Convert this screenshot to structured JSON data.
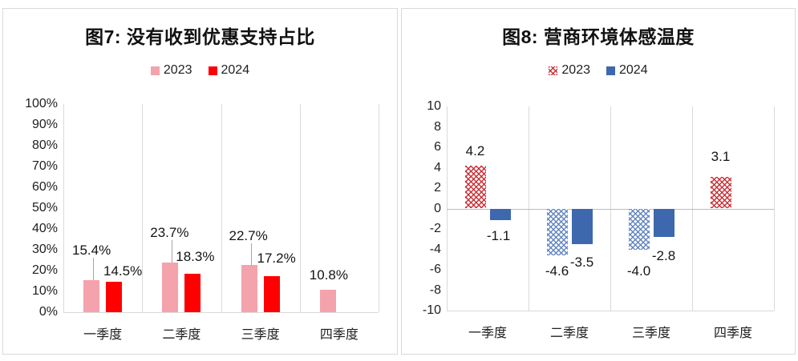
{
  "chart_data": [
    {
      "id": "fig7",
      "type": "bar",
      "title": "图7: 没有收到优惠支持占比",
      "categories": [
        "一季度",
        "二季度",
        "三季度",
        "四季度"
      ],
      "series": [
        {
          "name": "2023",
          "values": [
            15.4,
            23.7,
            22.7,
            10.8
          ],
          "data_labels": [
            "15.4%",
            "23.7%",
            "22.7%",
            "10.8%"
          ],
          "fill": "solid",
          "color": "#f4a2ac"
        },
        {
          "name": "2024",
          "values": [
            14.5,
            18.3,
            17.2,
            null
          ],
          "data_labels": [
            "14.5%",
            "18.3%",
            "17.2%",
            null
          ],
          "fill": "solid",
          "color": "#fe0000"
        }
      ],
      "legend": [
        {
          "label": "2023",
          "marker": "pink-solid"
        },
        {
          "label": "2024",
          "marker": "red-solid"
        }
      ],
      "ylim": [
        0,
        100
      ],
      "ytick_step": 10,
      "ytick_labels": [
        "100%",
        "90%",
        "80%",
        "70%",
        "60%",
        "50%",
        "40%",
        "30%",
        "20%",
        "10%",
        "0%"
      ],
      "grid": "vertical-category-lines",
      "legend_position": "top"
    },
    {
      "id": "fig8",
      "type": "bar",
      "title": "图8: 营商环境体感温度",
      "categories": [
        "一季度",
        "二季度",
        "三季度",
        "四季度"
      ],
      "series": [
        {
          "name": "2023",
          "values": [
            4.2,
            -4.6,
            -4.0,
            3.1
          ],
          "data_labels": [
            "4.2",
            "-4.6",
            "-4.0",
            "3.1"
          ],
          "fill": "hatch",
          "color_positive": "#c92930",
          "color_negative": "#5e81be"
        },
        {
          "name": "2024",
          "values": [
            -1.1,
            -3.5,
            -2.8,
            null
          ],
          "data_labels": [
            "-1.1",
            "-3.5",
            "-2.8",
            null
          ],
          "fill": "solid",
          "color": "#3e68ae"
        }
      ],
      "legend": [
        {
          "label": "2023",
          "marker": "red-hatch"
        },
        {
          "label": "2024",
          "marker": "blue-solid"
        }
      ],
      "ylim": [
        -10,
        10
      ],
      "ytick_step": 2,
      "ytick_labels": [
        "10",
        "8",
        "6",
        "4",
        "2",
        "0",
        "-2",
        "-4",
        "-6",
        "-8",
        "-10"
      ],
      "grid": "vertical-category-lines",
      "legend_position": "top"
    }
  ],
  "colors": {
    "pink_2023": "#f4a2ac",
    "red_2024": "#fe0000",
    "blue_2024": "#3e68ae",
    "hatch_red_2023": "#c92930",
    "hatch_blue_2023_negative": "#5e81be",
    "gridline": "#d9d9d9",
    "panel_border": "#d9d9d9"
  }
}
